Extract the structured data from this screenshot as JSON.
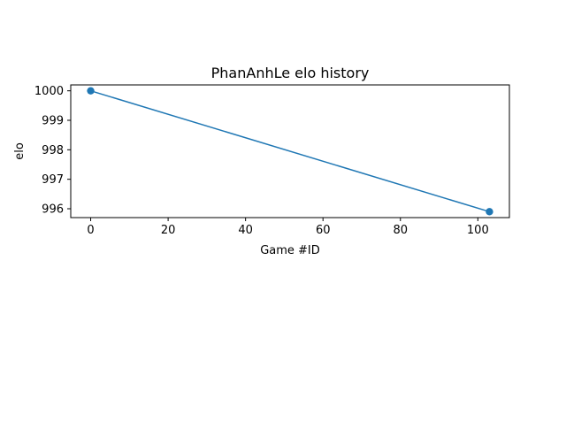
{
  "chart_data": {
    "type": "line",
    "title": "PhanAnhLe elo history",
    "xlabel": "Game #ID",
    "ylabel": "elo",
    "xlim": [
      -5.15,
      108.15
    ],
    "ylim": [
      995.7,
      1000.2
    ],
    "xticks": [
      0,
      20,
      40,
      60,
      80,
      100
    ],
    "xtick_labels": [
      "0",
      "20",
      "40",
      "60",
      "80",
      "100"
    ],
    "yticks": [
      996,
      997,
      998,
      999,
      1000
    ],
    "ytick_labels": [
      "996",
      "997",
      "998",
      "999",
      "1000"
    ],
    "grid": false,
    "series": [
      {
        "color": "#1f77b4",
        "marker": "circle",
        "x": [
          0,
          103
        ],
        "y": [
          1000,
          995.9
        ]
      }
    ]
  }
}
